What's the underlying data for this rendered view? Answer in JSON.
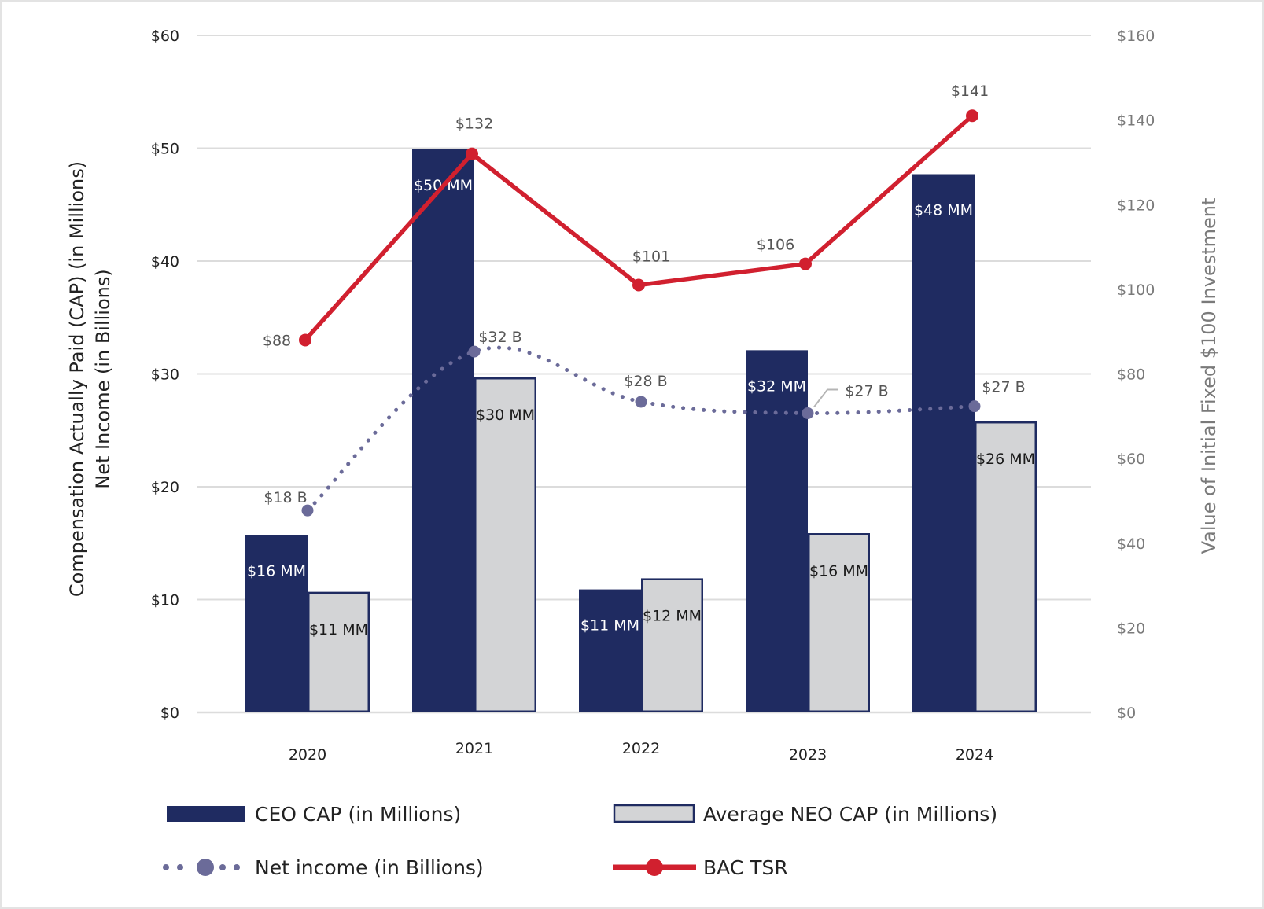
{
  "chart_data": {
    "type": "bar",
    "categories": [
      "2020",
      "2021",
      "2022",
      "2023",
      "2024"
    ],
    "left_axis": {
      "title_line1": "Compensation Actually Paid (CAP) (in Millions)",
      "title_line2": "Net Income (in Billions)",
      "ylim": [
        0,
        60
      ],
      "ticks": [
        0,
        10,
        20,
        30,
        40,
        50,
        60
      ],
      "tick_labels": [
        "$0",
        "$10",
        "$20",
        "$30",
        "$40",
        "$50",
        "$60"
      ]
    },
    "right_axis": {
      "title": "Value of Initial Fixed $100 Investment",
      "ylim": [
        0,
        160
      ],
      "ticks": [
        0,
        20,
        40,
        60,
        80,
        100,
        120,
        140,
        160
      ],
      "tick_labels": [
        "$0",
        "$20",
        "$40",
        "$60",
        "$80",
        "$100",
        "$120",
        "$140",
        "$160"
      ]
    },
    "grid": true,
    "series": [
      {
        "name": "CEO CAP (in Millions)",
        "type": "bar",
        "axis": "left",
        "color": "#1f2b61",
        "values": [
          15.7,
          49.9,
          10.9,
          32.1,
          47.7
        ],
        "labels": [
          "$16 MM",
          "$50 MM",
          "$11 MM",
          "$32 MM",
          "$48 MM"
        ]
      },
      {
        "name": "Average NEO CAP (in Millions)",
        "type": "bar",
        "axis": "left",
        "color": "#d3d4d6",
        "values": [
          10.6,
          29.6,
          11.8,
          15.8,
          25.7
        ],
        "labels": [
          "$11 MM",
          "$30 MM",
          "$12 MM",
          "$16 MM",
          "$26 MM"
        ]
      },
      {
        "name": "Net income (in Billions)",
        "type": "line",
        "style": "dotted",
        "axis": "left",
        "color": "#6b6b99",
        "values": [
          17.9,
          31.98,
          27.53,
          26.52,
          27.13
        ],
        "labels": [
          "$18 B",
          "$32 B",
          "$28 B",
          "$27 B",
          "$27 B"
        ]
      },
      {
        "name": "BAC TSR",
        "type": "line",
        "axis": "right",
        "color": "#d1202f",
        "values": [
          88,
          132,
          101,
          106,
          141
        ],
        "labels": [
          "$88",
          "$132",
          "$101",
          "$106",
          "$141"
        ]
      }
    ],
    "legend": {
      "placement": "bottom",
      "items": [
        "CEO CAP (in Millions)",
        "Average NEO CAP (in Millions)",
        "Net income (in Billions)",
        "BAC TSR"
      ]
    }
  }
}
